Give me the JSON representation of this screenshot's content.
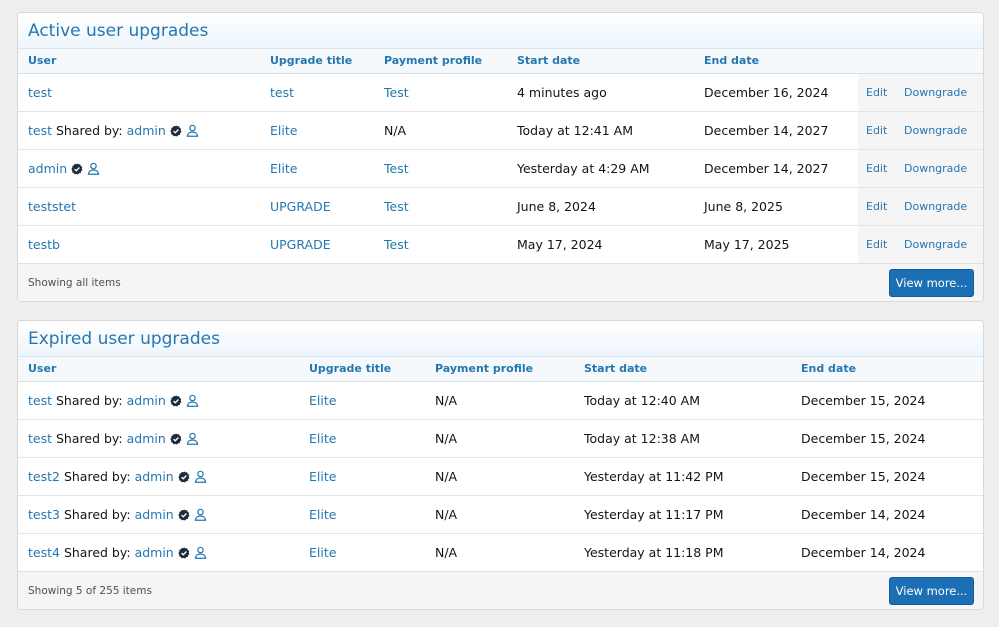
{
  "active": {
    "title": "Active user upgrades",
    "columns": [
      "User",
      "Upgrade title",
      "Payment profile",
      "Start date",
      "End date"
    ],
    "rows": [
      {
        "user": "test",
        "shared_label": "",
        "shared_user": "",
        "verified": false,
        "person": false,
        "upgrade": "test",
        "payment": "Test",
        "payment_link": true,
        "start": "4 minutes ago",
        "end": "December 16, 2024"
      },
      {
        "user": "test",
        "shared_label": "Shared by:",
        "shared_user": "admin",
        "verified": true,
        "person": true,
        "upgrade": "Elite",
        "payment": "N/A",
        "payment_link": false,
        "start": "Today at 12:41 AM",
        "end": "December 14, 2027"
      },
      {
        "user": "admin",
        "shared_label": "",
        "shared_user": "",
        "verified": true,
        "person": true,
        "upgrade": "Elite",
        "payment": "Test",
        "payment_link": true,
        "start": "Yesterday at 4:29 AM",
        "end": "December 14, 2027"
      },
      {
        "user": "teststet",
        "shared_label": "",
        "shared_user": "",
        "verified": false,
        "person": false,
        "upgrade": "UPGRADE",
        "payment": "Test",
        "payment_link": true,
        "start": "June 8, 2024",
        "end": "June 8, 2025"
      },
      {
        "user": "testb",
        "shared_label": "",
        "shared_user": "",
        "verified": false,
        "person": false,
        "upgrade": "UPGRADE",
        "payment": "Test",
        "payment_link": true,
        "start": "May 17, 2024",
        "end": "May 17, 2025"
      }
    ],
    "edit_label": "Edit",
    "downgrade_label": "Downgrade",
    "footer": "Showing all items",
    "view_more": "View more..."
  },
  "expired": {
    "title": "Expired user upgrades",
    "columns": [
      "User",
      "Upgrade title",
      "Payment profile",
      "Start date",
      "End date"
    ],
    "rows": [
      {
        "user": "test",
        "shared_label": "Shared by:",
        "shared_user": "admin",
        "verified": true,
        "person": true,
        "upgrade": "Elite",
        "payment": "N/A",
        "payment_link": false,
        "start": "Today at 12:40 AM",
        "end": "December 15, 2024"
      },
      {
        "user": "test",
        "shared_label": "Shared by:",
        "shared_user": "admin",
        "verified": true,
        "person": true,
        "upgrade": "Elite",
        "payment": "N/A",
        "payment_link": false,
        "start": "Today at 12:38 AM",
        "end": "December 15, 2024"
      },
      {
        "user": "test2",
        "shared_label": "Shared by:",
        "shared_user": "admin",
        "verified": true,
        "person": true,
        "upgrade": "Elite",
        "payment": "N/A",
        "payment_link": false,
        "start": "Yesterday at 11:42 PM",
        "end": "December 15, 2024"
      },
      {
        "user": "test3",
        "shared_label": "Shared by:",
        "shared_user": "admin",
        "verified": true,
        "person": true,
        "upgrade": "Elite",
        "payment": "N/A",
        "payment_link": false,
        "start": "Yesterday at 11:17 PM",
        "end": "December 14, 2024"
      },
      {
        "user": "test4",
        "shared_label": "Shared by:",
        "shared_user": "admin",
        "verified": true,
        "person": true,
        "upgrade": "Elite",
        "payment": "N/A",
        "payment_link": false,
        "start": "Yesterday at 11:18 PM",
        "end": "December 14, 2024"
      }
    ],
    "footer": "Showing 5 of 255 items",
    "view_more": "View more..."
  },
  "icons": {
    "verified": "verified-badge-icon",
    "user": "user-outline-icon"
  },
  "colors": {
    "link": "#2577b1",
    "button": "#1c6fb4",
    "badge": "#1d2b3a"
  }
}
